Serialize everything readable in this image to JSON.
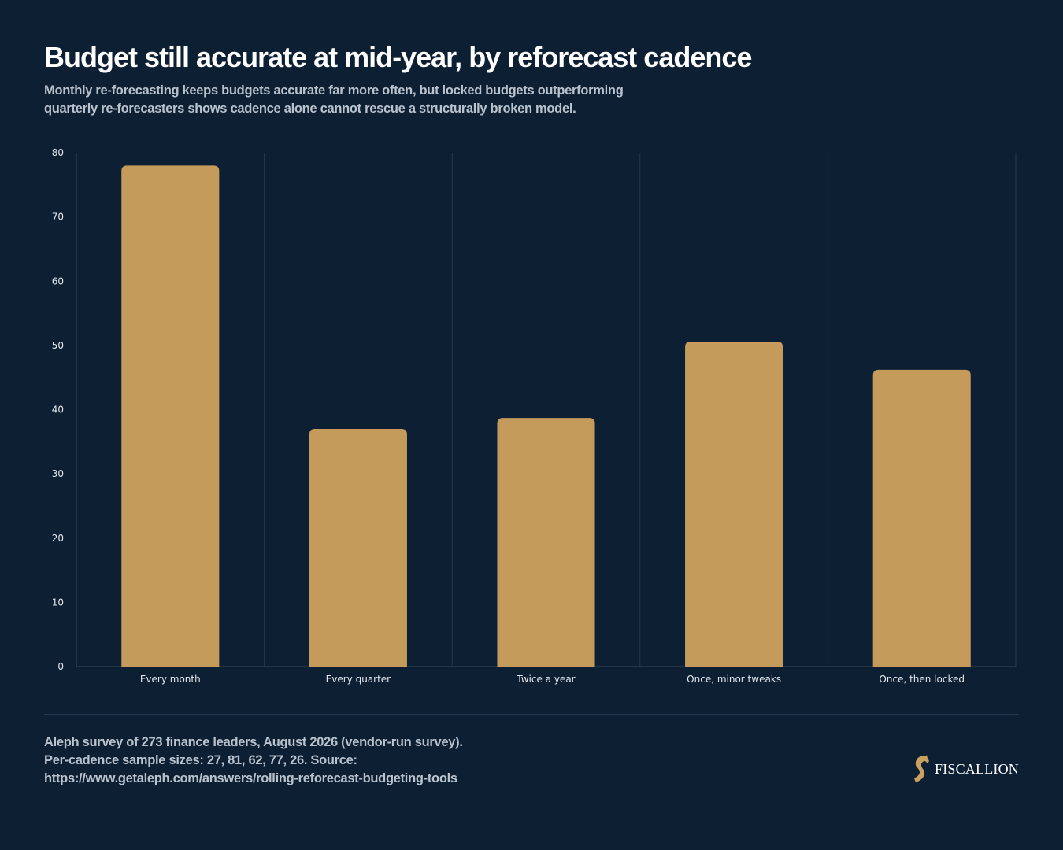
{
  "header": {
    "title": "Budget still accurate at mid-year, by reforecast cadence",
    "subtitle": "Monthly re-forecasting keeps budgets accurate far more often, but locked budgets outperforming quarterly re-forecasters shows cadence alone cannot rescue a structurally broken model."
  },
  "footer": {
    "source": "Aleph survey of 273 finance leaders, August 2026 (vendor-run survey). Per-cadence sample sizes: 27, 81, 62, 77, 26. Source: https://www.getaleph.com/answers/rolling-reforecast-budgeting-tools",
    "brand_name": "FISCALLION",
    "brand_icon": "horse-head-logo-icon"
  },
  "colors": {
    "background": "#0d1f33",
    "bar": "#c49b5b",
    "grid": "#26384c",
    "axis": "#3a4a5d",
    "text": "#e4e8ee",
    "muted_text": "#b9c2cd",
    "brand_gold": "#c9a25e"
  },
  "chart_data": {
    "type": "bar",
    "categories": [
      "Every month",
      "Every quarter",
      "Twice a year",
      "Once, minor tweaks",
      "Once, then locked"
    ],
    "values": [
      78,
      37,
      38.7,
      50.6,
      46.2
    ],
    "title": "",
    "xlabel": "",
    "ylabel": "",
    "ylim": [
      0,
      80
    ],
    "yticks": [
      0,
      10,
      20,
      30,
      40,
      50,
      60,
      70,
      80
    ],
    "grid": "vertical separators between categories",
    "legend": "none"
  }
}
